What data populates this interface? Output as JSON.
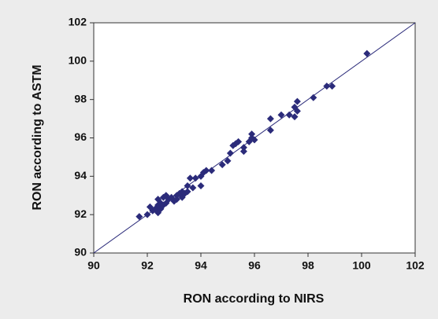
{
  "chart_data": {
    "type": "scatter",
    "xlabel": "RON according to NIRS",
    "ylabel": "RON according to ASTM",
    "xlim": [
      90,
      102
    ],
    "ylim": [
      90,
      102
    ],
    "xticks": [
      90,
      92,
      94,
      96,
      98,
      100,
      102
    ],
    "yticks": [
      90,
      92,
      94,
      96,
      98,
      100,
      102
    ],
    "identity_line": true,
    "line_color": "#2b2b7a",
    "color": "#2b2b7a",
    "series": [
      {
        "x": [
          91.7,
          92.0,
          92.1,
          92.2,
          92.3,
          92.4,
          92.4,
          92.4,
          92.5,
          92.5,
          92.6,
          92.6,
          92.7,
          92.7,
          92.8,
          92.9,
          93.0,
          93.1,
          93.1,
          93.2,
          93.3,
          93.3,
          93.4,
          93.5,
          93.5,
          93.6,
          93.7,
          93.8,
          94.0,
          94.0,
          94.1,
          94.2,
          94.4,
          94.8,
          95.0,
          95.1,
          95.2,
          95.3,
          95.4,
          95.6,
          95.6,
          95.8,
          95.9,
          95.9,
          96.0,
          96.6,
          96.6,
          97.0,
          97.3,
          97.5,
          97.5,
          97.6,
          97.6,
          98.2,
          98.7,
          98.9,
          100.2
        ],
        "y": [
          91.9,
          92.0,
          92.4,
          92.2,
          92.3,
          92.1,
          92.5,
          92.8,
          92.3,
          92.6,
          92.9,
          92.5,
          93.0,
          92.6,
          92.8,
          92.9,
          92.7,
          93.0,
          92.8,
          93.1,
          92.9,
          93.2,
          93.1,
          93.5,
          93.2,
          93.9,
          93.4,
          93.9,
          94.0,
          93.5,
          94.2,
          94.3,
          94.3,
          94.6,
          94.8,
          95.2,
          95.6,
          95.7,
          95.8,
          95.5,
          95.3,
          95.8,
          96.0,
          96.2,
          95.9,
          96.4,
          97.0,
          97.2,
          97.2,
          97.1,
          97.6,
          97.9,
          97.4,
          98.1,
          98.7,
          98.7,
          100.4
        ]
      }
    ]
  }
}
